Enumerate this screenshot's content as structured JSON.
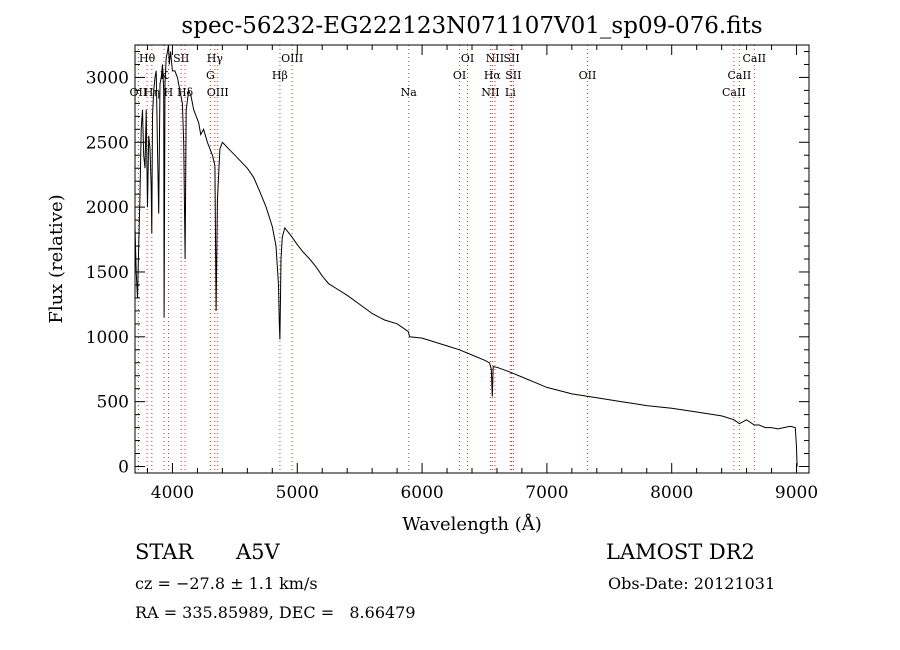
{
  "chart_data": {
    "type": "line",
    "title": "spec-56232-EG222123N071107V01_sp09-076.fits",
    "xlabel": "Wavelength (Å)",
    "ylabel": "Flux (relative)",
    "xlim": [
      3700,
      9100
    ],
    "ylim": [
      -50,
      3250
    ],
    "x_ticks": [
      4000,
      5000,
      6000,
      7000,
      8000,
      9000
    ],
    "y_ticks": [
      0,
      500,
      1000,
      1500,
      2000,
      2500,
      3000
    ],
    "grid": false,
    "series": [
      {
        "x": [
          3700,
          3710,
          3720,
          3730,
          3740,
          3750,
          3760,
          3770,
          3780,
          3790,
          3800,
          3810,
          3820,
          3830,
          3835,
          3840,
          3850,
          3860,
          3870,
          3880,
          3890,
          3900,
          3910,
          3920,
          3930,
          3933,
          3940,
          3950,
          3960,
          3968,
          3975,
          3985,
          4000,
          4020,
          4040,
          4060,
          4080,
          4090,
          4101,
          4110,
          4130,
          4150,
          4170,
          4190,
          4210,
          4226,
          4250,
          4280,
          4300,
          4320,
          4340,
          4350,
          4360,
          4380,
          4400,
          4420,
          4450,
          4500,
          4550,
          4600,
          4650,
          4700,
          4750,
          4800,
          4830,
          4850,
          4856,
          4861,
          4866,
          4870,
          4880,
          4900,
          4950,
          5000,
          5050,
          5100,
          5150,
          5200,
          5250,
          5300,
          5400,
          5500,
          5600,
          5700,
          5800,
          5890,
          5900,
          6000,
          6100,
          6200,
          6300,
          6400,
          6500,
          6540,
          6555,
          6563,
          6570,
          6600,
          6700,
          6800,
          6900,
          7000,
          7200,
          7400,
          7600,
          7800,
          8000,
          8200,
          8400,
          8500,
          8542,
          8600,
          8662,
          8700,
          8750,
          8800,
          8850,
          8900,
          8950,
          8990,
          9000,
          9005
        ],
        "y": [
          1850,
          1500,
          1300,
          1700,
          2100,
          2600,
          2750,
          2400,
          2300,
          2750,
          2000,
          2550,
          2450,
          2150,
          1800,
          2700,
          2900,
          3000,
          3050,
          2450,
          1950,
          2950,
          3000,
          3100,
          2900,
          1150,
          2950,
          3150,
          3200,
          3250,
          3100,
          3200,
          3050,
          3050,
          3000,
          2900,
          2800,
          2500,
          1600,
          2750,
          2900,
          2850,
          2750,
          2700,
          2650,
          2560,
          2600,
          2500,
          2450,
          2400,
          2320,
          1200,
          2050,
          2450,
          2500,
          2480,
          2450,
          2400,
          2350,
          2300,
          2230,
          2120,
          2000,
          1850,
          1700,
          1400,
          1100,
          980,
          1300,
          1600,
          1770,
          1840,
          1780,
          1710,
          1650,
          1600,
          1540,
          1470,
          1410,
          1380,
          1320,
          1250,
          1180,
          1130,
          1100,
          1040,
          1000,
          990,
          960,
          930,
          900,
          860,
          820,
          800,
          750,
          540,
          770,
          765,
          730,
          690,
          650,
          610,
          560,
          530,
          500,
          470,
          450,
          420,
          390,
          360,
          330,
          360,
          320,
          320,
          300,
          300,
          290,
          300,
          310,
          300,
          150,
          0
        ]
      }
    ],
    "line_markers": [
      {
        "label": "Hθ",
        "x": 3797,
        "row": 1
      },
      {
        "label": "OII",
        "x": 3727,
        "row": 3
      },
      {
        "label": "Hη",
        "x": 3835,
        "row": 3
      },
      {
        "label": "K",
        "x": 3933,
        "row": 2
      },
      {
        "label": "H",
        "x": 3968,
        "row": 3
      },
      {
        "label": "SII",
        "x": 4070,
        "row": 1
      },
      {
        "label": "Hδ",
        "x": 4101,
        "row": 3
      },
      {
        "label": "Hγ",
        "x": 4340,
        "row": 1
      },
      {
        "label": "G",
        "x": 4304,
        "row": 2
      },
      {
        "label": "OIII",
        "x": 4363,
        "row": 3
      },
      {
        "label": "OIII",
        "x": 4959,
        "row": 1
      },
      {
        "label": "Hβ",
        "x": 4861,
        "row": 2
      },
      {
        "label": "Na",
        "x": 5893,
        "row": 3
      },
      {
        "label": "OI",
        "x": 6364,
        "row": 1
      },
      {
        "label": "OI",
        "x": 6300,
        "row": 2
      },
      {
        "label": "NII",
        "x": 6584,
        "row": 1
      },
      {
        "label": "SII",
        "x": 6717,
        "row": 1
      },
      {
        "label": "Hα",
        "x": 6563,
        "row": 2
      },
      {
        "label": "SII",
        "x": 6731,
        "row": 2
      },
      {
        "label": "NII",
        "x": 6548,
        "row": 3
      },
      {
        "label": "Li",
        "x": 6707,
        "row": 3
      },
      {
        "label": "OII",
        "x": 7325,
        "row": 2
      },
      {
        "label": "CaII",
        "x": 8662,
        "row": 1
      },
      {
        "label": "CaII",
        "x": 8542,
        "row": 2
      },
      {
        "label": "CaII",
        "x": 8498,
        "row": 3
      }
    ]
  },
  "info": {
    "class_label": "STAR",
    "subclass": "A5V",
    "survey": "LAMOST DR2",
    "cz": "cz = −27.8 ± 1.1 km/s",
    "obs_date": "Obs-Date: 20121031",
    "coords": "RA = 335.85989, DEC =   8.66479"
  }
}
